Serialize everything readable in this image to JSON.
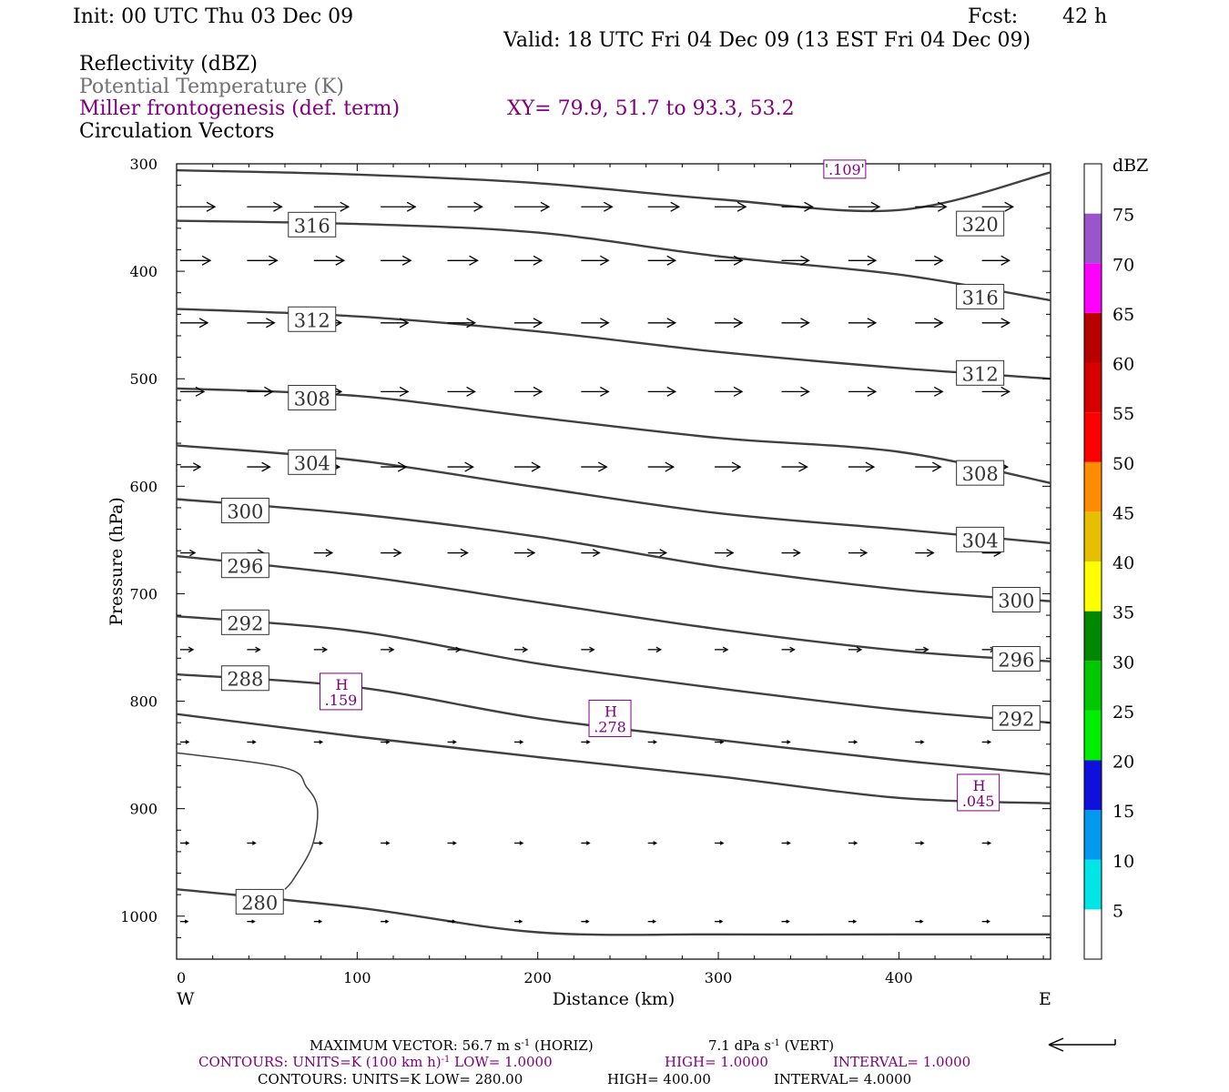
{
  "header": {
    "init": "Init: 00 UTC Thu 03 Dec 09",
    "fcst_label": "Fcst:",
    "fcst_value": "42 h",
    "valid": "Valid: 18 UTC Fri 04 Dec 09 (13 EST Fri 04 Dec 09)",
    "field1": "Reflectivity (dBZ)",
    "field2": "Potential Temperature (K)",
    "field3": "Miller frontogenesis (def. term)",
    "xy": "XY=  79.9, 51.7 to  93.3, 53.2",
    "field4": "Circulation Vectors"
  },
  "colors": {
    "contour": "#404040",
    "purple": "#800080",
    "grey_text": "#707070"
  },
  "chart_data": {
    "type": "cross-section",
    "xlabel": "Distance (km)",
    "ylabel": "Pressure (hPa)",
    "xlim": [
      0,
      484
    ],
    "ylim": [
      1040,
      300
    ],
    "x_ticks": [
      "0",
      "100",
      "200",
      "300",
      "400"
    ],
    "y_ticks": [
      "300",
      "400",
      "500",
      "600",
      "700",
      "800",
      "900",
      "1000"
    ],
    "left_end_label": "W",
    "right_end_label": "E",
    "theta_contours": [
      {
        "level": 320,
        "x": [
          0,
          100,
          200,
          300,
          400,
          484
        ],
        "p": [
          306,
          310,
          318,
          333,
          343,
          308
        ]
      },
      {
        "level": 316,
        "x": [
          0,
          100,
          200,
          300,
          400,
          484
        ],
        "p": [
          353,
          356,
          364,
          386,
          403,
          427
        ]
      },
      {
        "level": 312,
        "x": [
          0,
          100,
          200,
          300,
          400,
          484
        ],
        "p": [
          435,
          442,
          456,
          475,
          490,
          500
        ]
      },
      {
        "level": 308,
        "x": [
          0,
          100,
          200,
          300,
          400,
          484
        ],
        "p": [
          509,
          516,
          536,
          555,
          568,
          597
        ]
      },
      {
        "level": 304,
        "x": [
          0,
          100,
          200,
          300,
          400,
          484
        ],
        "p": [
          562,
          576,
          601,
          625,
          640,
          653
        ]
      },
      {
        "level": 300,
        "x": [
          0,
          100,
          200,
          300,
          400,
          484
        ],
        "p": [
          612,
          626,
          647,
          675,
          696,
          707
        ]
      },
      {
        "level": 296,
        "x": [
          0,
          100,
          200,
          300,
          400,
          484
        ],
        "p": [
          665,
          683,
          708,
          733,
          753,
          763
        ]
      },
      {
        "level": 292,
        "x": [
          0,
          100,
          200,
          300,
          400,
          484
        ],
        "p": [
          721,
          735,
          765,
          788,
          808,
          820
        ]
      },
      {
        "level": 288,
        "x": [
          0,
          100,
          200,
          300,
          400,
          484
        ],
        "p": [
          775,
          787,
          816,
          836,
          855,
          868
        ]
      },
      {
        "level": 284,
        "x": [
          0,
          100,
          200,
          300,
          400,
          484
        ],
        "p": [
          812,
          833,
          852,
          870,
          890,
          895
        ]
      },
      {
        "level": 280,
        "x": [
          0,
          100,
          200,
          300,
          400,
          484
        ],
        "p": [
          975,
          992,
          1015,
          1017,
          1017,
          1017
        ]
      }
    ],
    "contour_labels": [
      {
        "text": "320",
        "x": 445,
        "p": 356
      },
      {
        "text": "316",
        "x": 75,
        "p": 357
      },
      {
        "text": "316",
        "x": 445,
        "p": 424
      },
      {
        "text": "312",
        "x": 75,
        "p": 445
      },
      {
        "text": "312",
        "x": 445,
        "p": 495
      },
      {
        "text": "308",
        "x": 75,
        "p": 518
      },
      {
        "text": "308",
        "x": 445,
        "p": 588
      },
      {
        "text": "304",
        "x": 75,
        "p": 578
      },
      {
        "text": "304",
        "x": 445,
        "p": 650
      },
      {
        "text": "300",
        "x": 38,
        "p": 623
      },
      {
        "text": "300",
        "x": 465,
        "p": 706
      },
      {
        "text": "296",
        "x": 38,
        "p": 674
      },
      {
        "text": "296",
        "x": 465,
        "p": 761
      },
      {
        "text": "292",
        "x": 38,
        "p": 727
      },
      {
        "text": "292",
        "x": 465,
        "p": 816
      },
      {
        "text": "288",
        "x": 38,
        "p": 779
      },
      {
        "text": "280",
        "x": 46,
        "p": 987
      }
    ],
    "frontogenesis_maxima": [
      {
        "label": "H",
        "value": ".159",
        "x": 91,
        "p": 791
      },
      {
        "label": "H",
        "value": ".278",
        "x": 240,
        "p": 816
      },
      {
        "label": "H",
        "value": ".045",
        "x": 444,
        "p": 885
      },
      {
        "label": "",
        "value": ".109",
        "x": 370,
        "p": 305
      }
    ],
    "vectors": [
      {
        "p": 340,
        "x": [
          0,
          37,
          74,
          111,
          148,
          185,
          222,
          259,
          296,
          333,
          370,
          407,
          444
        ],
        "len": [
          38,
          38,
          38,
          38,
          38,
          38,
          34,
          34,
          34,
          34,
          34,
          34,
          34
        ]
      },
      {
        "p": 390,
        "x": [
          0,
          37,
          74,
          111,
          148,
          185,
          222,
          259,
          296,
          333,
          370,
          407,
          444
        ],
        "len": [
          33,
          33,
          33,
          33,
          33,
          30,
          30,
          30,
          30,
          30,
          30,
          30,
          30
        ]
      },
      {
        "p": 448,
        "x": [
          0,
          37,
          74,
          111,
          148,
          185,
          222,
          259,
          296,
          333,
          370,
          407,
          444
        ],
        "len": [
          30,
          30,
          30,
          30,
          30,
          30,
          30,
          30,
          30,
          30,
          30,
          30,
          30
        ]
      },
      {
        "p": 512,
        "x": [
          0,
          37,
          74,
          111,
          148,
          185,
          222,
          259,
          296,
          333,
          370,
          407,
          444
        ],
        "len": [
          26,
          28,
          30,
          30,
          30,
          30,
          30,
          30,
          30,
          30,
          30,
          30,
          30
        ]
      },
      {
        "p": 582,
        "x": [
          0,
          37,
          74,
          111,
          148,
          185,
          222,
          259,
          296,
          333,
          370,
          407,
          444
        ],
        "len": [
          22,
          25,
          28,
          28,
          28,
          28,
          28,
          28,
          28,
          28,
          28,
          28,
          28
        ]
      },
      {
        "p": 662,
        "x": [
          0,
          37,
          74,
          111,
          148,
          185,
          222,
          259,
          296,
          333,
          370,
          407,
          444
        ],
        "len": [
          16,
          18,
          20,
          22,
          22,
          22,
          20,
          20,
          20,
          20,
          20,
          20,
          20
        ]
      },
      {
        "p": 752,
        "x": [
          0,
          37,
          74,
          111,
          148,
          185,
          222,
          259,
          296,
          333,
          370,
          407,
          444
        ],
        "len": [
          14,
          14,
          14,
          14,
          14,
          14,
          14,
          14,
          14,
          14,
          14,
          14,
          14
        ]
      },
      {
        "p": 838,
        "x": [
          0,
          37,
          74,
          111,
          148,
          185,
          222,
          259,
          296,
          333,
          370,
          407,
          444
        ],
        "len": [
          9,
          9,
          9,
          9,
          9,
          9,
          9,
          9,
          9,
          9,
          9,
          9,
          9
        ]
      },
      {
        "p": 932,
        "x": [
          0,
          37,
          74,
          111,
          148,
          185,
          222,
          259,
          296,
          333,
          370,
          407,
          444
        ],
        "len": [
          9,
          9,
          9,
          9,
          9,
          9,
          9,
          9,
          9,
          9,
          9,
          9,
          9
        ]
      },
      {
        "p": 1005,
        "x": [
          0,
          37,
          74,
          111,
          148,
          185,
          222,
          259,
          296,
          333,
          370,
          407,
          444
        ],
        "len": [
          8,
          8,
          8,
          8,
          8,
          8,
          8,
          8,
          8,
          8,
          8,
          8,
          8
        ]
      }
    ],
    "frontogenesis_contour": {
      "x": [
        0,
        60,
        72,
        78,
        75,
        65,
        60
      ],
      "p": [
        848,
        862,
        880,
        900,
        935,
        965,
        975
      ]
    },
    "colorbar": {
      "title": "dBZ",
      "levels": [
        "5",
        "10",
        "15",
        "20",
        "25",
        "30",
        "35",
        "40",
        "45",
        "50",
        "55",
        "60",
        "65",
        "70",
        "75"
      ],
      "colors": [
        "#ffffff",
        "#00e5e5",
        "#0099ee",
        "#1010dd",
        "#00ee00",
        "#00c800",
        "#008800",
        "#ffff00",
        "#e6c000",
        "#ff8c00",
        "#ff0000",
        "#d60000",
        "#b80000",
        "#ff00ff",
        "#9955cc",
        "#ffffff"
      ]
    }
  },
  "footer": {
    "line1a": "MAXIMUM VECTOR:  56.7 m s",
    "line1a_sup": "-1",
    "line1b": " (HORIZ)",
    "line1c": "7.1 dPa s",
    "line1c_sup": "-1",
    "line1d": " (VERT)",
    "line2a": "CONTOURS:  UNITS=K (100 km h)",
    "line2a_sup": "-1",
    "line2b": "  LOW=   1.0000",
    "line2c": "HIGH=   1.0000",
    "line2d": "INTERVAL=    1.0000",
    "line3a": "CONTOURS:  UNITS=K  LOW=  280.00",
    "line3b": "HIGH=  400.00",
    "line3c": "INTERVAL=     4.0000"
  }
}
